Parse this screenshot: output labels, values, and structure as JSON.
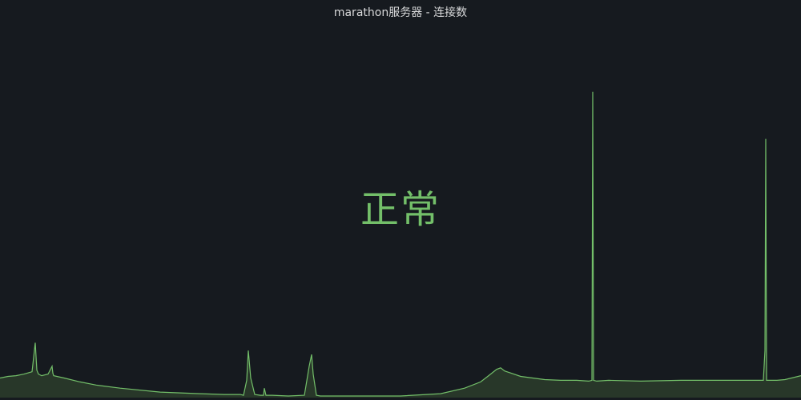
{
  "panel": {
    "title": "marathon服务器 - 连接数",
    "value_text": "正常"
  },
  "colors": {
    "background": "#161a1f",
    "sparkline_line": "#73bf69",
    "sparkline_fill": "#2a3b2a",
    "title_text": "#d8d9da",
    "value_text": "#73bf69"
  },
  "chart_data": {
    "type": "area",
    "ylim": [
      0,
      400
    ],
    "x": [
      0,
      1,
      2,
      3,
      4,
      4.4,
      4.6,
      4.8,
      5.2,
      6,
      6.5,
      6.6,
      6.7,
      8,
      10,
      12,
      15,
      20,
      25,
      28,
      30,
      30.4,
      30.8,
      31,
      31.3,
      31.8,
      32.5,
      32.9,
      33,
      33.2,
      34,
      36,
      38,
      38.6,
      38.9,
      39.1,
      39.5,
      40,
      45,
      50,
      55,
      58,
      60,
      61,
      62,
      62.5,
      63,
      65,
      68,
      70,
      72,
      73.5,
      73.9,
      74.0,
      74.1,
      74.5,
      76,
      80,
      85,
      90,
      93,
      95,
      95.3,
      95.5,
      95.6,
      95.7,
      95.9,
      96.3,
      97,
      98,
      100
    ],
    "values": [
      25,
      27,
      28,
      30,
      33,
      70,
      35,
      30,
      28,
      30,
      40,
      31,
      28,
      25,
      20,
      16,
      12,
      7,
      5,
      4,
      4,
      3,
      22,
      60,
      25,
      4,
      3,
      3,
      12,
      3,
      3,
      2,
      3,
      40,
      55,
      30,
      3,
      2,
      2,
      2,
      5,
      12,
      20,
      28,
      36,
      38,
      34,
      27,
      23,
      22,
      22,
      21,
      22,
      390,
      22,
      21,
      22,
      21,
      22,
      22,
      22,
      22,
      22,
      60,
      330,
      22,
      22,
      22,
      22,
      23,
      28
    ]
  }
}
